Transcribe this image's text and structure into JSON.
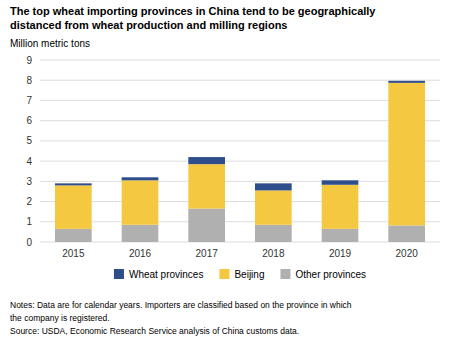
{
  "chart_data": {
    "type": "bar",
    "stacked": true,
    "title": [
      "The top wheat importing provinces in China tend to be geographically",
      "distanced from wheat production and milling regions"
    ],
    "ylabel": "Million metric tons",
    "categories": [
      "2015",
      "2016",
      "2017",
      "2018",
      "2019",
      "2020"
    ],
    "series": [
      {
        "name": "Other provinces",
        "color": "#b0b0b0",
        "values": [
          0.65,
          0.85,
          1.65,
          0.85,
          0.65,
          0.82
        ]
      },
      {
        "name": "Beijing",
        "color": "#f5c842",
        "values": [
          2.15,
          2.2,
          2.2,
          1.7,
          2.18,
          7.05
        ]
      },
      {
        "name": "Wheat provinces",
        "color": "#2e4d8b",
        "values": [
          0.1,
          0.15,
          0.35,
          0.35,
          0.22,
          0.1
        ]
      }
    ],
    "ylim": [
      0,
      9
    ],
    "yticks": [
      0,
      1,
      2,
      3,
      4,
      5,
      6,
      7,
      8,
      9
    ],
    "grid": true,
    "legend": "bottom",
    "annotations": [
      "Notes: Data are for calendar years. Importers are classified based on the province in which",
      "the company is registered.",
      "Source: USDA, Economic Research Service analysis of China customs data."
    ]
  }
}
